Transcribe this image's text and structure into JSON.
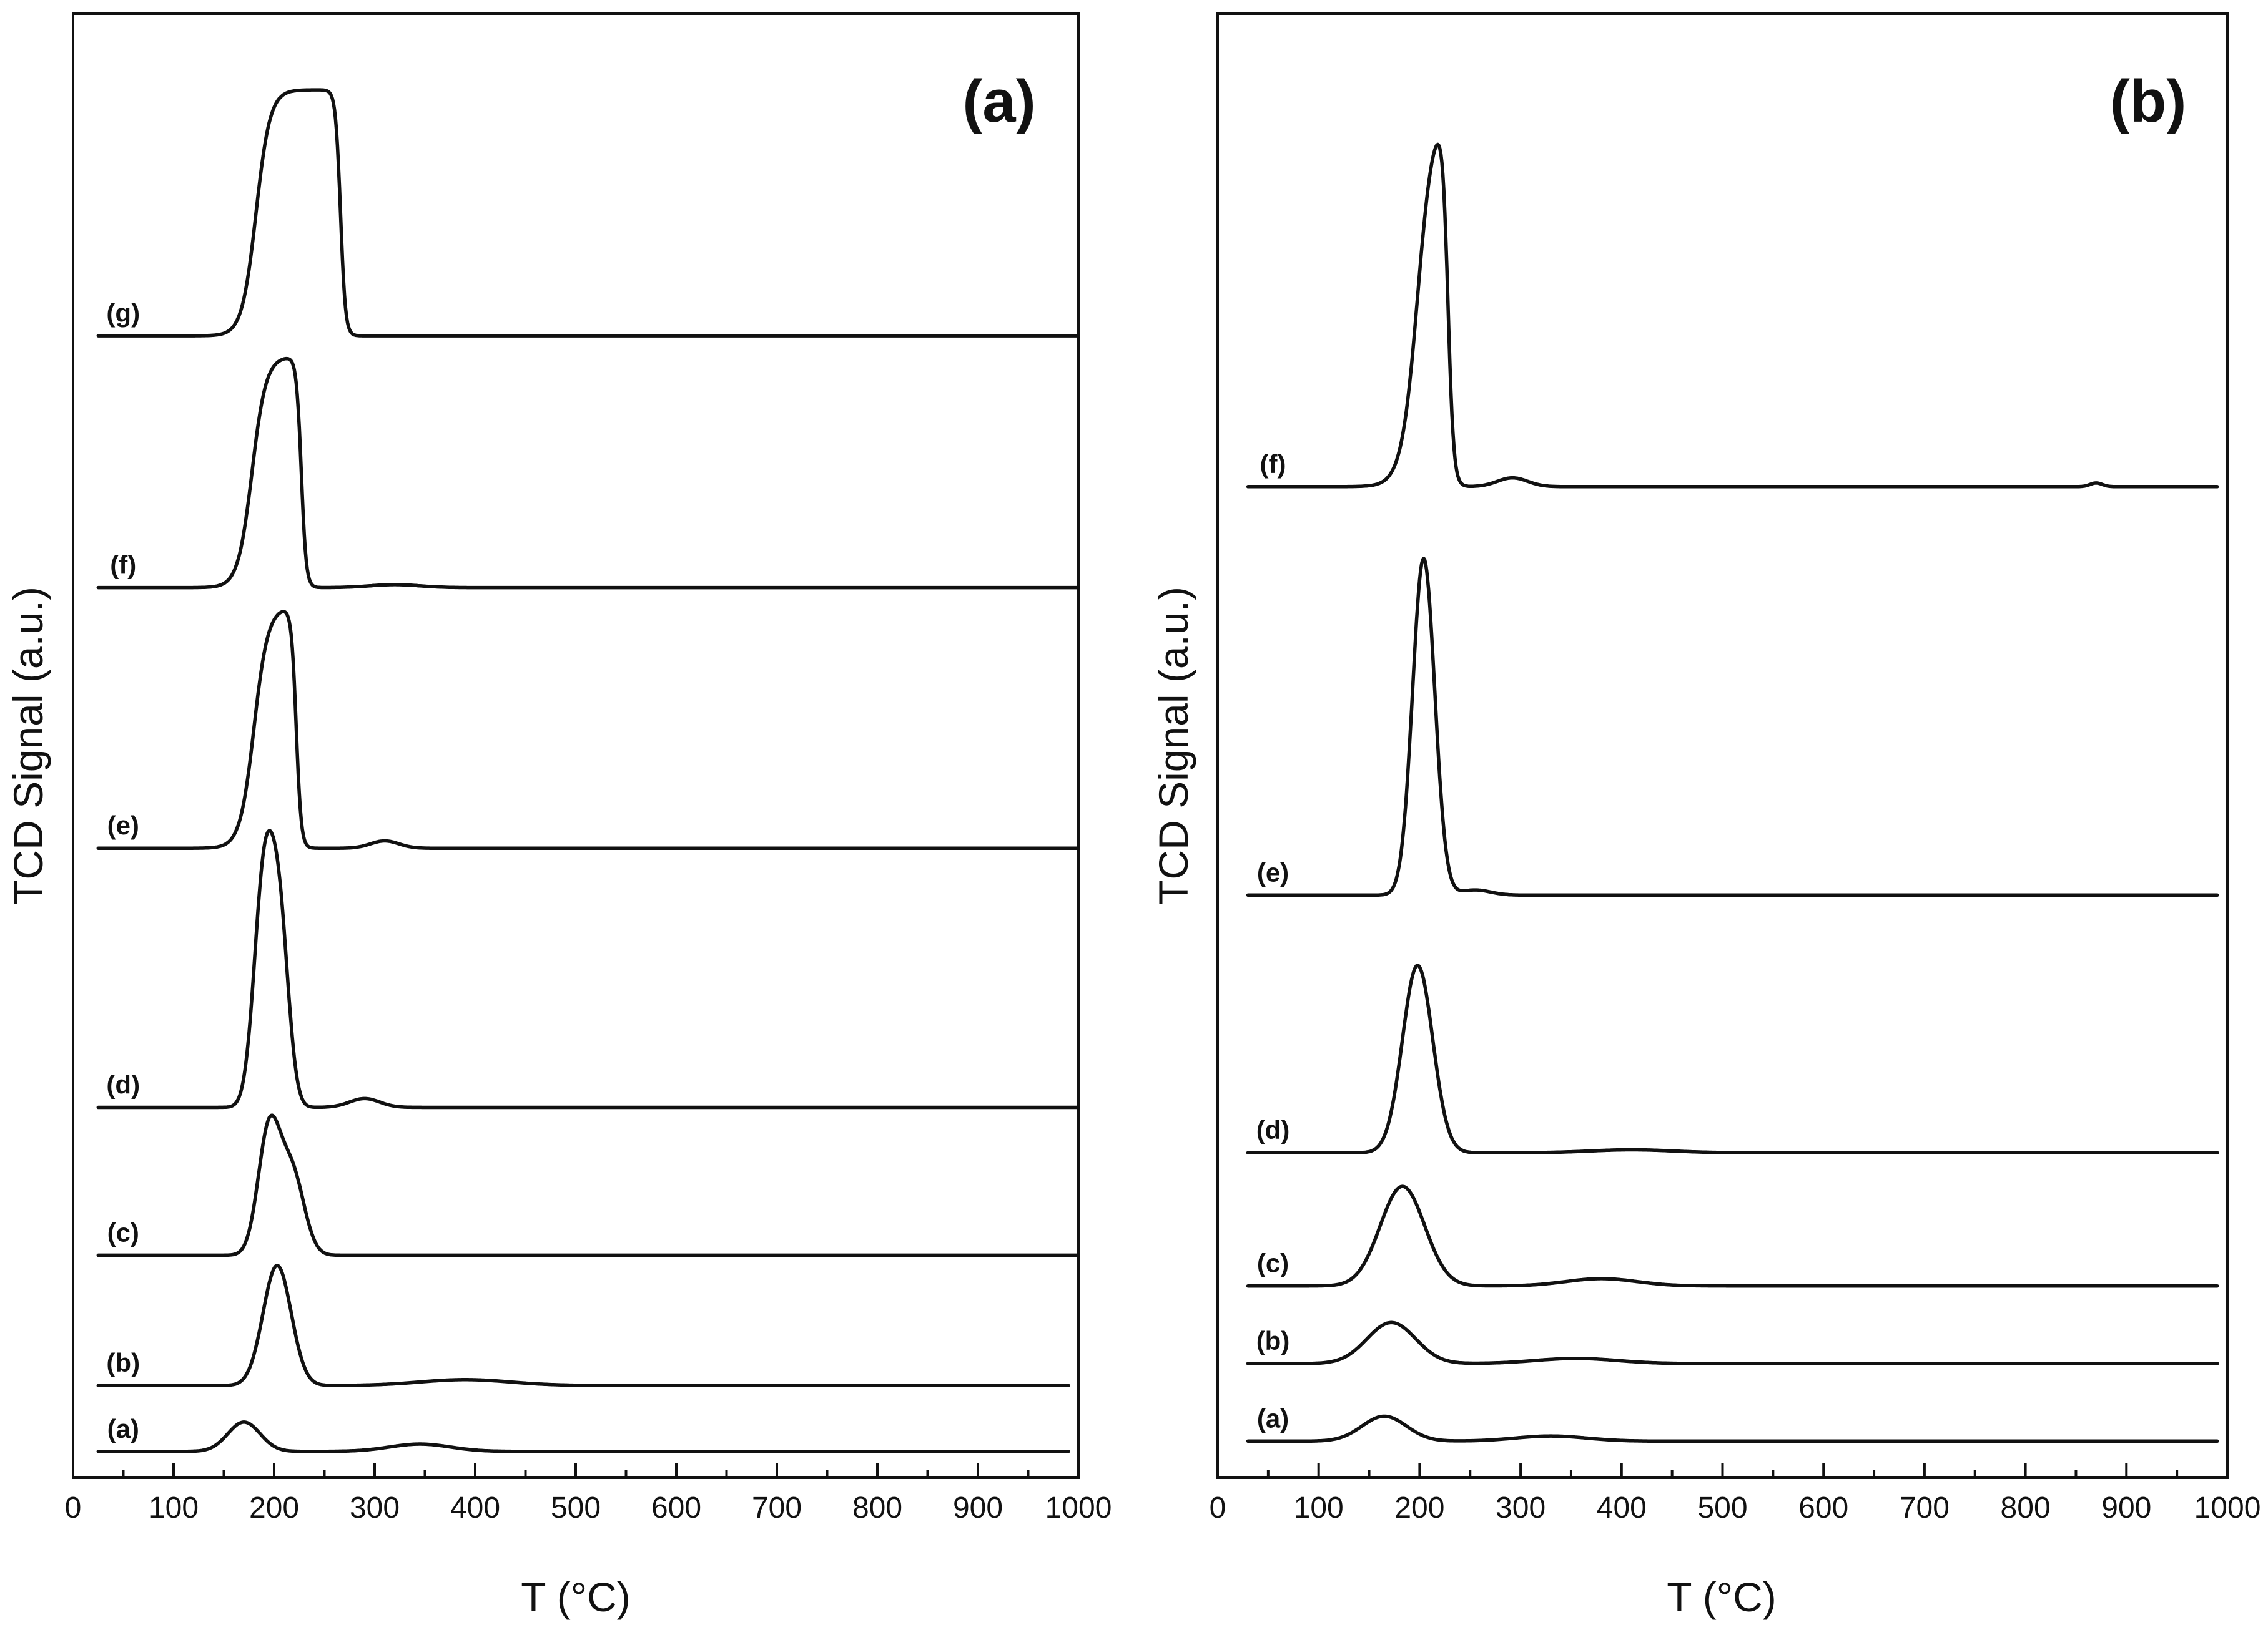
{
  "chart_data": [
    {
      "panel": "(a)",
      "type": "line",
      "title": "(a)",
      "xlabel": "T (°C)",
      "ylabel": "TCD Signal (a.u.)",
      "xlim": [
        0,
        1000
      ],
      "ylim": [
        0,
        100
      ],
      "xticks": [
        0,
        100,
        200,
        300,
        400,
        500,
        600,
        700,
        800,
        900,
        1000
      ],
      "xtick_labels": [
        "0",
        "100",
        "200",
        "300",
        "400",
        "500",
        "600",
        "700",
        "800",
        "900",
        "1000"
      ],
      "y_ticks_shown": false,
      "series": [
        {
          "name": "(a)",
          "label": "(a)",
          "baseline": 1.8,
          "x_start": 25,
          "x_end": 990,
          "peaks": [
            {
              "center": 170,
              "height": 2.0,
              "width": 16
            },
            {
              "center": 345,
              "height": 0.5,
              "width": 30
            }
          ]
        },
        {
          "name": "(b)",
          "label": "(b)",
          "baseline": 6.3,
          "x_start": 25,
          "x_end": 990,
          "peaks": [
            {
              "center": 203,
              "height": 8.2,
              "width": 14
            },
            {
              "center": 390,
              "height": 0.4,
              "width": 45
            }
          ]
        },
        {
          "name": "(c)",
          "label": "(c)",
          "baseline": 15.2,
          "x_start": 25,
          "x_end": 1000,
          "peaks": [
            {
              "center": 195,
              "height": 8.5,
              "width": 11
            },
            {
              "center": 218,
              "height": 5.5,
              "width": 12
            }
          ]
        },
        {
          "name": "(d)",
          "label": "(d)",
          "baseline": 25.3,
          "x_start": 25,
          "x_end": 1000,
          "peaks": [
            {
              "center": 190,
              "height": 15.5,
              "width": 10
            },
            {
              "center": 206,
              "height": 11.0,
              "width": 9
            },
            {
              "center": 290,
              "height": 0.6,
              "width": 15
            }
          ]
        },
        {
          "name": "(e)",
          "label": "(e)",
          "baseline": 43.0,
          "x_start": 25,
          "x_end": 1000,
          "plateau": {
            "start": 180,
            "end": 222,
            "height": 16.5,
            "edge": 7
          },
          "peaks": [
            {
              "center": 310,
              "height": 0.5,
              "width": 14
            }
          ]
        },
        {
          "name": "(f)",
          "label": "(f)",
          "baseline": 60.8,
          "x_start": 25,
          "x_end": 1000,
          "plateau": {
            "start": 178,
            "end": 227,
            "height": 15.8,
            "edge": 7
          },
          "peaks": [
            {
              "center": 320,
              "height": 0.2,
              "width": 25
            }
          ]
        },
        {
          "name": "(g)",
          "label": "(g)",
          "baseline": 78.0,
          "x_start": 25,
          "x_end": 1000,
          "plateau": {
            "start": 182,
            "end": 266,
            "height": 16.8,
            "edge": 7
          },
          "peaks": []
        }
      ]
    },
    {
      "panel": "(b)",
      "type": "line",
      "title": "(b)",
      "xlabel": "T (°C)",
      "ylabel": "TCD Signal (a.u.)",
      "xlim": [
        0,
        1000
      ],
      "ylim": [
        0,
        100
      ],
      "xticks": [
        0,
        100,
        200,
        300,
        400,
        500,
        600,
        700,
        800,
        900,
        1000
      ],
      "xtick_labels": [
        "0",
        "100",
        "200",
        "300",
        "400",
        "500",
        "600",
        "700",
        "800",
        "900",
        "1000"
      ],
      "y_ticks_shown": false,
      "series": [
        {
          "name": "(a)",
          "label": "(a)",
          "baseline": 2.5,
          "x_start": 30,
          "x_end": 990,
          "peaks": [
            {
              "center": 165,
              "height": 1.7,
              "width": 22
            },
            {
              "center": 330,
              "height": 0.35,
              "width": 35
            }
          ]
        },
        {
          "name": "(b)",
          "label": "(b)",
          "baseline": 7.8,
          "x_start": 30,
          "x_end": 990,
          "peaks": [
            {
              "center": 172,
              "height": 2.8,
              "width": 24
            },
            {
              "center": 355,
              "height": 0.35,
              "width": 40
            }
          ]
        },
        {
          "name": "(c)",
          "label": "(c)",
          "baseline": 13.1,
          "x_start": 30,
          "x_end": 990,
          "peaks": [
            {
              "center": 183,
              "height": 6.8,
              "width": 22
            },
            {
              "center": 380,
              "height": 0.5,
              "width": 35
            }
          ]
        },
        {
          "name": "(d)",
          "label": "(d)",
          "baseline": 22.2,
          "x_start": 30,
          "x_end": 990,
          "peaks": [
            {
              "center": 198,
              "height": 12.8,
              "width": 15
            },
            {
              "center": 410,
              "height": 0.2,
              "width": 40
            }
          ]
        },
        {
          "name": "(e)",
          "label": "(e)",
          "baseline": 39.8,
          "x_start": 30,
          "x_end": 990,
          "peaks": [
            {
              "center": 204,
              "height": 23.0,
              "width": 11
            },
            {
              "center": 255,
              "height": 0.35,
              "width": 15
            }
          ]
        },
        {
          "name": "(f)",
          "label": "(f)",
          "baseline": 67.7,
          "x_start": 30,
          "x_end": 990,
          "plateau": {
            "start": 198,
            "end": 228,
            "height": 26.0,
            "edge": 8
          },
          "peaks": [
            {
              "center": 292,
              "height": 0.6,
              "width": 15
            },
            {
              "center": 870,
              "height": 0.25,
              "width": 6
            }
          ]
        }
      ]
    }
  ]
}
